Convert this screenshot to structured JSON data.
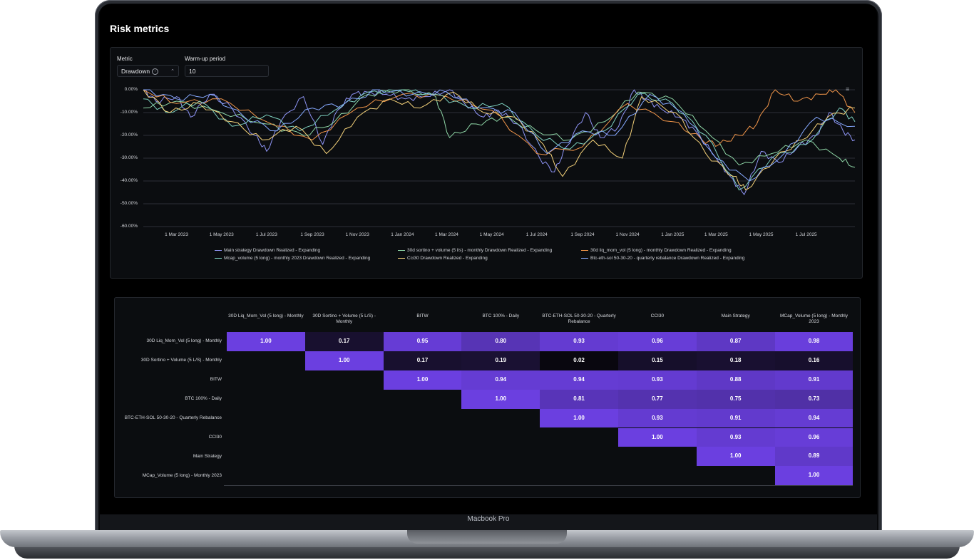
{
  "device": {
    "label": "Macbook Pro"
  },
  "page": {
    "title": "Risk metrics"
  },
  "controls": {
    "metric": {
      "label": "Metric",
      "value": "Drawdown"
    },
    "warmup": {
      "label": "Warm-up period",
      "value": "10"
    }
  },
  "colors": {
    "main": "#8f95f6",
    "sortino": "#8fd7a7",
    "liq": "#f2964a",
    "mcap": "#7ed1c0",
    "cci30": "#f5d27a",
    "btceth": "#86a9ff",
    "heat_low": "#07060b",
    "heat_high": "#6b3fe0"
  },
  "chart_data": {
    "type": "line",
    "title": "",
    "xlabel": "",
    "ylabel": "",
    "y_ticks": [
      "0.00%",
      "-10.00%",
      "-20.00%",
      "-30.00%",
      "-40.00%",
      "-50.00%",
      "-60.00%"
    ],
    "ylim": [
      -60,
      0
    ],
    "x_ticks": [
      "1 Mar 2023",
      "1 May 2023",
      "1 Jul 2023",
      "1 Sep 2023",
      "1 Nov 2023",
      "1 Jan 2024",
      "1 Mar 2024",
      "1 May 2024",
      "1 Jul 2024",
      "1 Sep 2024",
      "1 Nov 2024",
      "1 Jan 2025",
      "1 Mar 2025",
      "1 May 2025",
      "1 Jul 2025"
    ],
    "xlim": [
      "2023-01-15",
      "2025-09-05"
    ],
    "legend": "bottom",
    "series": [
      {
        "name": "Main strategy Drawdown Realized - Expanding",
        "color_key": "main",
        "x": [
          "2023-01-15",
          "2023-02-01",
          "2023-03-01",
          "2023-03-20",
          "2023-04-15",
          "2023-05-15",
          "2023-06-15",
          "2023-07-01",
          "2023-07-20",
          "2023-08-20",
          "2023-09-15",
          "2023-10-05",
          "2023-10-25",
          "2023-11-15",
          "2023-12-10",
          "2024-01-05",
          "2024-02-01",
          "2024-03-05",
          "2024-03-25",
          "2024-04-20",
          "2024-05-10",
          "2024-06-05",
          "2024-07-05",
          "2024-07-25",
          "2024-08-10",
          "2024-09-05",
          "2024-09-25",
          "2024-10-20",
          "2024-11-10",
          "2024-11-25",
          "2024-12-15",
          "2025-01-10",
          "2025-02-01",
          "2025-03-01",
          "2025-03-20",
          "2025-04-08",
          "2025-05-01",
          "2025-05-25",
          "2025-06-20",
          "2025-07-15",
          "2025-08-01",
          "2025-08-20",
          "2025-09-05"
        ],
        "y": [
          0,
          -5,
          -3,
          -12,
          -2,
          -8,
          -20,
          -27,
          -14,
          -3,
          -24,
          -9,
          -2,
          -1,
          -2,
          -4,
          -3,
          0,
          -6,
          -12,
          -9,
          -15,
          -30,
          -36,
          -25,
          -10,
          -21,
          -16,
          0,
          -4,
          -8,
          -12,
          -18,
          -30,
          -38,
          -46,
          -27,
          -32,
          -25,
          -20,
          -10,
          -18,
          -22
        ]
      },
      {
        "name": "30d sortino + volume (5 l/s) - monthly Drawdown Realized - Expanding",
        "color_key": "sortino",
        "x": [
          "2023-01-15",
          "2023-03-01",
          "2023-05-01",
          "2023-07-01",
          "2023-08-20",
          "2023-10-01",
          "2023-11-15",
          "2024-01-01",
          "2024-02-15",
          "2024-03-05",
          "2024-04-10",
          "2024-05-15",
          "2024-07-01",
          "2024-08-15",
          "2024-10-01",
          "2024-11-15",
          "2025-01-01",
          "2025-02-15",
          "2025-04-01",
          "2025-05-15",
          "2025-07-01",
          "2025-08-15",
          "2025-09-05"
        ],
        "y": [
          -8,
          -5,
          -10,
          -15,
          -20,
          -14,
          -2,
          0,
          -3,
          -21,
          -15,
          -12,
          -18,
          -22,
          -14,
          -1,
          -4,
          -18,
          -33,
          -28,
          -22,
          -30,
          -34
        ]
      },
      {
        "name": "30d liq_mom_vol (5 long) - monthly Drawdown Realized - Expanding",
        "color_key": "liq",
        "x": [
          "2023-01-15",
          "2023-03-01",
          "2023-05-01",
          "2023-07-01",
          "2023-09-01",
          "2023-11-01",
          "2024-01-01",
          "2024-03-01",
          "2024-05-01",
          "2024-07-01",
          "2024-09-01",
          "2024-11-01",
          "2025-01-01",
          "2025-02-10",
          "2025-03-05",
          "2025-04-01",
          "2025-04-25",
          "2025-05-20",
          "2025-06-20",
          "2025-07-20",
          "2025-08-10",
          "2025-09-05"
        ],
        "y": [
          0,
          -6,
          -4,
          -14,
          -22,
          -8,
          -2,
          -3,
          -9,
          -28,
          -25,
          -6,
          -14,
          -22,
          -24,
          -20,
          -15,
          0,
          -5,
          -2,
          0,
          -10
        ]
      },
      {
        "name": "Mcap_volume (5 long) - monthly 2023 Drawdown Realized - Expanding",
        "color_key": "mcap",
        "x": [
          "2023-01-15",
          "2023-02-15",
          "2023-04-01",
          "2023-05-15",
          "2023-07-01",
          "2023-08-15",
          "2023-10-01",
          "2023-11-15",
          "2024-01-01",
          "2024-02-15",
          "2024-04-01",
          "2024-05-15",
          "2024-07-01",
          "2024-08-15",
          "2024-10-01",
          "2024-11-15",
          "2025-01-01",
          "2025-02-15",
          "2025-04-01",
          "2025-05-15",
          "2025-07-01",
          "2025-08-15",
          "2025-09-05"
        ],
        "y": [
          -4,
          -10,
          -5,
          -16,
          -11,
          -18,
          -9,
          -1,
          0,
          -2,
          -8,
          -6,
          -20,
          -26,
          -18,
          -2,
          -6,
          -20,
          -44,
          -30,
          -24,
          -8,
          -14
        ]
      },
      {
        "name": "Cci30 Drawdown Realized - Expanding",
        "color_key": "cci30",
        "x": [
          "2023-01-15",
          "2023-02-20",
          "2023-04-01",
          "2023-05-15",
          "2023-06-25",
          "2023-08-10",
          "2023-09-20",
          "2023-11-01",
          "2023-12-15",
          "2024-01-25",
          "2024-03-10",
          "2024-04-20",
          "2024-06-01",
          "2024-07-10",
          "2024-08-05",
          "2024-09-15",
          "2024-10-25",
          "2024-11-20",
          "2025-01-05",
          "2025-02-15",
          "2025-03-25",
          "2025-04-10",
          "2025-05-20",
          "2025-06-25",
          "2025-07-30",
          "2025-09-05"
        ],
        "y": [
          0,
          -10,
          -6,
          -14,
          -22,
          -16,
          -28,
          -12,
          -4,
          -8,
          -1,
          -10,
          -12,
          -24,
          -38,
          -22,
          -30,
          -3,
          -10,
          -28,
          -38,
          -44,
          -30,
          -22,
          -12,
          -8
        ]
      },
      {
        "name": "Btc-eth-sol 50-30-20 - quarterly rebalance Drawdown Realized - Expanding",
        "color_key": "btceth",
        "x": [
          "2023-01-15",
          "2023-03-01",
          "2023-04-15",
          "2023-06-01",
          "2023-07-15",
          "2023-09-01",
          "2023-10-15",
          "2023-12-01",
          "2024-01-15",
          "2024-03-01",
          "2024-04-15",
          "2024-06-01",
          "2024-07-15",
          "2024-09-01",
          "2024-10-15",
          "2024-12-01",
          "2025-01-15",
          "2025-03-01",
          "2025-04-15",
          "2025-06-01",
          "2025-07-15",
          "2025-09-05"
        ],
        "y": [
          0,
          -4,
          -2,
          -12,
          -18,
          -8,
          -6,
          0,
          -2,
          -1,
          -8,
          -10,
          -28,
          -18,
          -20,
          -2,
          -10,
          -30,
          -40,
          -28,
          -12,
          -16
        ]
      }
    ]
  },
  "heatmap": {
    "columns": [
      "30D Liq_Mom_Vol (5 long) - Monthly",
      "30D Sortino + Volume (5 L/S) - Monthly",
      "BITW",
      "BTC 100% - Daily",
      "BTC-ETH-SOL 50-30-20 - Quarterly Rebalance",
      "CCI30",
      "Main Strategy",
      "MCap_Volume (5 long) - Monthly 2023"
    ],
    "rows": [
      "30D Liq_Mom_Vol (5 long) - Monthly",
      "30D Sortino + Volume (5 L/S) - Monthly",
      "BITW",
      "BTC 100% - Daily",
      "BTC-ETH-SOL 50-30-20 - Quarterly Rebalance",
      "CCI30",
      "Main Strategy",
      "MCap_Volume (5 long) - Monthly 2023"
    ],
    "values": [
      [
        "1.00",
        "0.17",
        "0.95",
        "0.80",
        "0.93",
        "0.96",
        "0.87",
        "0.98"
      ],
      [
        null,
        "1.00",
        "0.17",
        "0.19",
        "0.02",
        "0.15",
        "0.18",
        "0.16"
      ],
      [
        null,
        null,
        "1.00",
        "0.94",
        "0.94",
        "0.93",
        "0.88",
        "0.91"
      ],
      [
        null,
        null,
        null,
        "1.00",
        "0.81",
        "0.77",
        "0.75",
        "0.73"
      ],
      [
        null,
        null,
        null,
        null,
        "1.00",
        "0.93",
        "0.91",
        "0.94"
      ],
      [
        null,
        null,
        null,
        null,
        null,
        "1.00",
        "0.93",
        "0.96"
      ],
      [
        null,
        null,
        null,
        null,
        null,
        null,
        "1.00",
        "0.89"
      ],
      [
        null,
        null,
        null,
        null,
        null,
        null,
        null,
        "1.00"
      ]
    ]
  }
}
